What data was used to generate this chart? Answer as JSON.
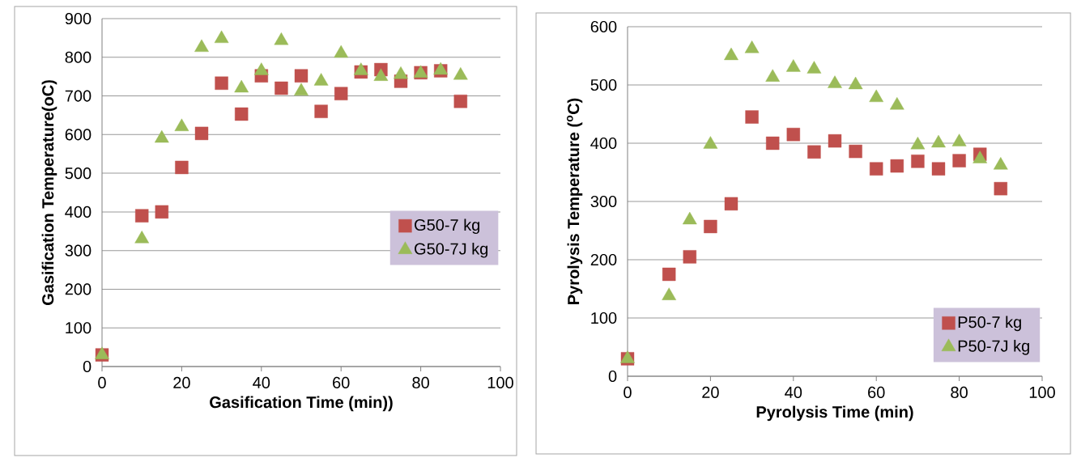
{
  "chart_data": [
    {
      "type": "scatter",
      "xlabel": "Gasification Time (min))",
      "ylabel": "Gasification Temperature(oC)",
      "xlim": [
        0,
        100
      ],
      "ylim": [
        0,
        900
      ],
      "xticks": [
        0,
        20,
        40,
        60,
        80,
        100
      ],
      "yticks": [
        0,
        100,
        200,
        300,
        400,
        500,
        600,
        700,
        800,
        900
      ],
      "grid": "y",
      "legend": "right",
      "x": [
        0,
        10,
        15,
        20,
        25,
        30,
        35,
        40,
        45,
        50,
        55,
        60,
        65,
        70,
        75,
        80,
        85,
        90
      ],
      "series": [
        {
          "name": "G50-7 kg",
          "color": "#c0504d",
          "marker": "square",
          "values": [
            30,
            390,
            400,
            515,
            603,
            733,
            653,
            752,
            720,
            752,
            660,
            706,
            762,
            768,
            738,
            760,
            765,
            686
          ]
        },
        {
          "name": "G50-7J kg",
          "color": "#9bbb59",
          "marker": "triangle",
          "values": [
            30,
            330,
            590,
            620,
            825,
            848,
            720,
            765,
            843,
            712,
            738,
            810,
            765,
            750,
            755,
            758,
            766,
            753
          ]
        }
      ]
    },
    {
      "type": "scatter",
      "xlabel": "Pyrolysis Time (min)",
      "ylabel": "Pyrolysis Temperature ($^{o}$C)",
      "xlim": [
        0,
        100
      ],
      "ylim": [
        0,
        600
      ],
      "xticks": [
        0,
        20,
        40,
        60,
        80,
        100
      ],
      "yticks": [
        0,
        100,
        200,
        300,
        400,
        500,
        600
      ],
      "grid": "y",
      "legend": "bottom right",
      "x": [
        0,
        10,
        15,
        20,
        25,
        30,
        35,
        40,
        45,
        50,
        55,
        60,
        65,
        70,
        75,
        80,
        85,
        90
      ],
      "series": [
        {
          "name": "P50-7 kg",
          "color": "#c0504d",
          "marker": "square",
          "values": [
            30,
            175,
            205,
            257,
            296,
            445,
            400,
            415,
            385,
            404,
            386,
            356,
            361,
            369,
            356,
            370,
            381,
            322
          ]
        },
        {
          "name": "P50-7J kg",
          "color": "#9bbb59",
          "marker": "triangle",
          "values": [
            30,
            138,
            268,
            398,
            550,
            562,
            513,
            530,
            527,
            502,
            500,
            478,
            465,
            397,
            400,
            402,
            373,
            362
          ]
        }
      ]
    }
  ]
}
